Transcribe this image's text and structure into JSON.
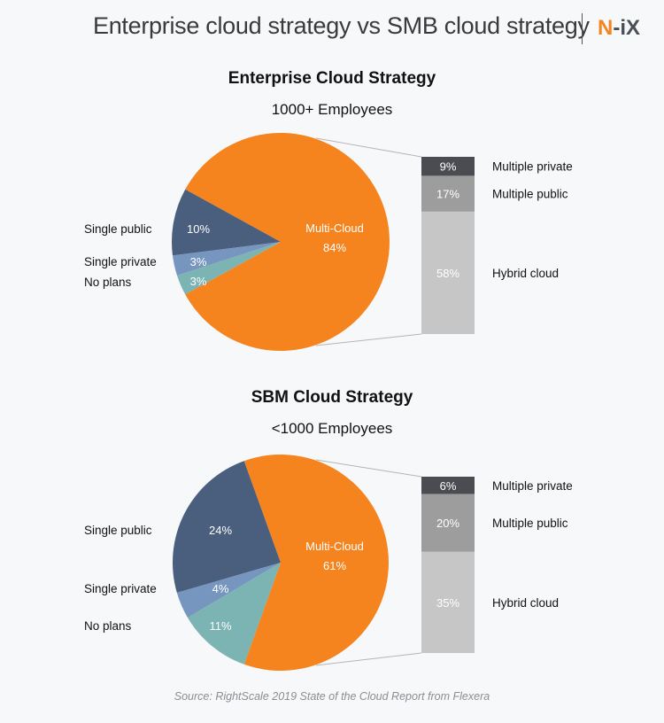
{
  "header": {
    "title": "Enterprise cloud strategy vs SMB cloud strategy",
    "logo_text": "N-iX",
    "logo_first": "N",
    "logo_rest": "-iX"
  },
  "colors": {
    "multi_cloud": "#f5841f",
    "single_public": "#4a5e7e",
    "single_private": "#7696bf",
    "no_plans": "#7cb3b3",
    "multiple_private": "#4a4c51",
    "multiple_public": "#9d9d9d",
    "hybrid_cloud": "#c6c6c6",
    "connector": "#b5b5b5"
  },
  "chart_data": [
    {
      "type": "pie",
      "title": "Enterprise Cloud Strategy",
      "subtitle": "1000+ Employees",
      "slices": [
        {
          "key": "multi_cloud",
          "label": "Multi-Cloud",
          "value": 84,
          "display": "84%"
        },
        {
          "key": "single_public",
          "label": "Single public",
          "value": 10,
          "display": "10%"
        },
        {
          "key": "single_private",
          "label": "Single private",
          "value": 3,
          "display": "3%"
        },
        {
          "key": "no_plans",
          "label": "No plans",
          "value": 3,
          "display": "3%"
        }
      ],
      "breakdown": {
        "of": "Multi-Cloud",
        "type": "stacked-bar",
        "segments": [
          {
            "key": "multiple_private",
            "label": "Multiple private",
            "value": 9,
            "display": "9%"
          },
          {
            "key": "multiple_public",
            "label": "Multiple public",
            "value": 17,
            "display": "17%"
          },
          {
            "key": "hybrid_cloud",
            "label": "Hybrid cloud",
            "value": 58,
            "display": "58%"
          }
        ]
      }
    },
    {
      "type": "pie",
      "title": "SBM Cloud Strategy",
      "subtitle": "<1000 Employees",
      "slices": [
        {
          "key": "multi_cloud",
          "label": "Multi-Cloud",
          "value": 61,
          "display": "61%"
        },
        {
          "key": "single_public",
          "label": "Single public",
          "value": 24,
          "display": "24%"
        },
        {
          "key": "single_private",
          "label": "Single private",
          "value": 4,
          "display": "4%"
        },
        {
          "key": "no_plans",
          "label": "No plans",
          "value": 11,
          "display": "11%"
        }
      ],
      "breakdown": {
        "of": "Multi-Cloud",
        "type": "stacked-bar",
        "segments": [
          {
            "key": "multiple_private",
            "label": "Multiple private",
            "value": 6,
            "display": "6%"
          },
          {
            "key": "multiple_public",
            "label": "Multiple public",
            "value": 20,
            "display": "20%"
          },
          {
            "key": "hybrid_cloud",
            "label": "Hybrid cloud",
            "value": 35,
            "display": "35%"
          }
        ]
      }
    }
  ],
  "source": "Source: RightScale 2019 State of the Cloud Report from Flexera"
}
